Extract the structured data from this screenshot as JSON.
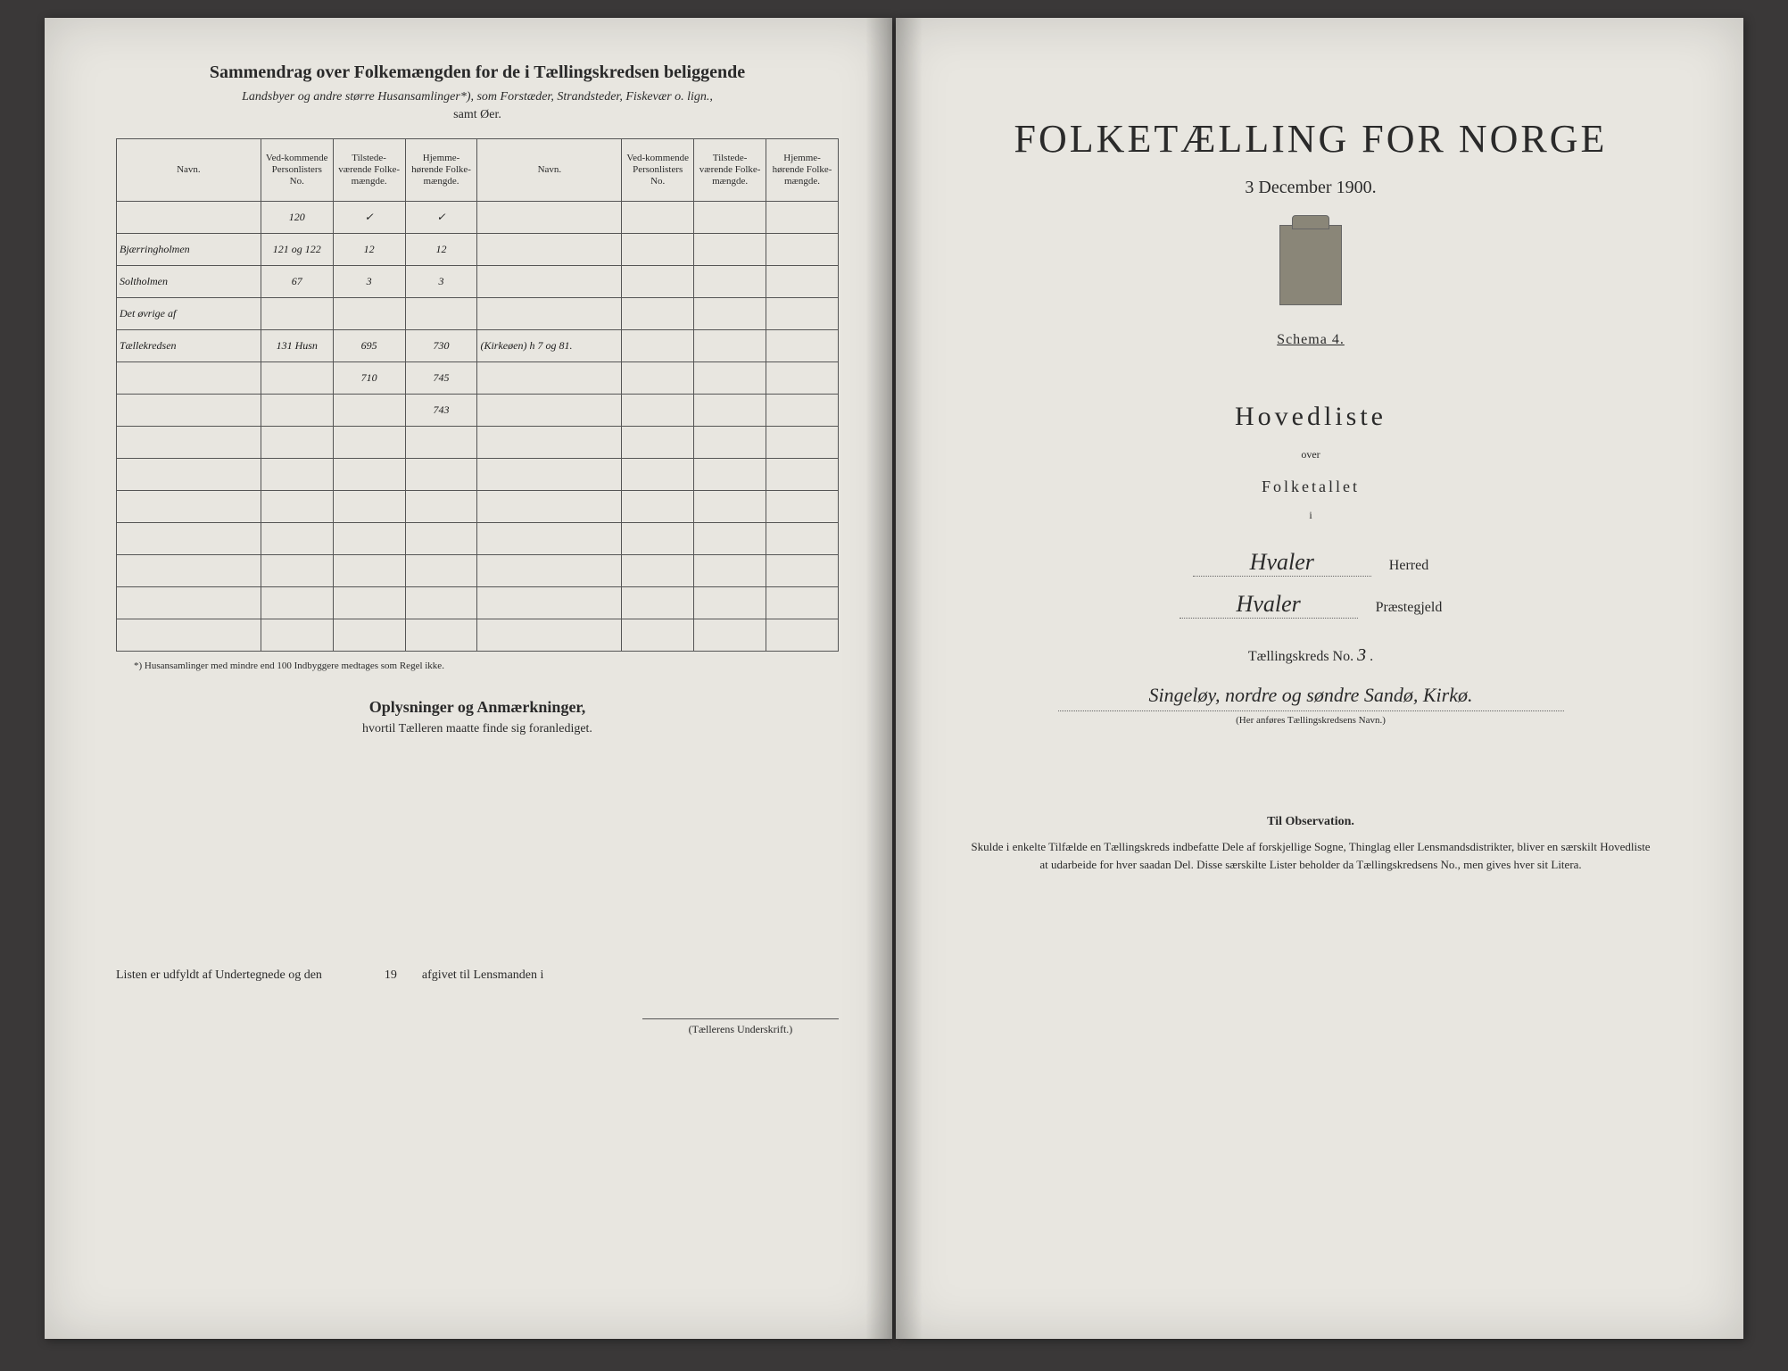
{
  "left": {
    "title": "Sammendrag over Folkemængden for de i Tællingskredsen beliggende",
    "subtitle": "Landsbyer og andre større Husansamlinger*), som Forstæder, Strandsteder, Fiskevær o. lign.,",
    "subtitle2": "samt Øer.",
    "headers": {
      "navn": "Navn.",
      "vedkom": "Ved-kommende Personlisters No.",
      "tilstede": "Tilstede-værende Folke-mængde.",
      "hjemme": "Hjemme-hørende Folke-mængde.",
      "navn2": "Navn.",
      "vedkom2": "Ved-kommende Personlisters No.",
      "tilstede2": "Tilstede-værende Folke-mængde.",
      "hjemme2": "Hjemme-hørende Folke-mængde."
    },
    "rows": [
      {
        "navn": "",
        "no": "120",
        "t": "✓",
        "h": "✓",
        "navn2": "",
        "no2": "",
        "t2": "",
        "h2": ""
      },
      {
        "navn": "Bjærringholmen",
        "no": "121 og 122",
        "t": "12",
        "h": "12",
        "navn2": "",
        "no2": "",
        "t2": "",
        "h2": ""
      },
      {
        "navn": "Soltholmen",
        "no": "67",
        "t": "3",
        "h": "3",
        "navn2": "",
        "no2": "",
        "t2": "",
        "h2": ""
      },
      {
        "navn": "Det øvrige af",
        "no": "",
        "t": "",
        "h": "",
        "navn2": "",
        "no2": "",
        "t2": "",
        "h2": ""
      },
      {
        "navn": "Tællekredsen",
        "no": "131 Husn",
        "t": "695",
        "h": "730",
        "navn2": "(Kirkeøen) h 7 og 81.",
        "no2": "",
        "t2": "",
        "h2": ""
      },
      {
        "navn": "",
        "no": "",
        "t": "710",
        "h": "745",
        "navn2": "",
        "no2": "",
        "t2": "",
        "h2": ""
      },
      {
        "navn": "",
        "no": "",
        "t": "",
        "h": "743",
        "navn2": "",
        "no2": "",
        "t2": "",
        "h2": ""
      }
    ],
    "footnote": "*) Husansamlinger med mindre end 100 Indbyggere medtages som Regel ikke.",
    "oply_title": "Oplysninger og Anmærkninger,",
    "oply_sub": "hvortil Tælleren maatte finde sig foranlediget.",
    "bottom_text_a": "Listen er udfyldt af Undertegnede og den",
    "bottom_text_b": "19",
    "bottom_text_c": "afgivet til Lensmanden i",
    "sig_label": "(Tællerens Underskrift.)"
  },
  "right": {
    "main_title": "FOLKETÆLLING FOR NORGE",
    "date": "3 December 1900.",
    "schema": "Schema 4.",
    "hovedliste": "Hovedliste",
    "over": "over",
    "folketallet": "Folketallet",
    "i": "i",
    "herred_value": "Hvaler",
    "herred_label": "Herred",
    "praeste_value": "Hvaler",
    "praeste_label": "Præstegjeld",
    "kreds_label": "Tællingskreds No.",
    "kreds_no": "3",
    "kreds_name": "Singeløy, nordre og søndre Sandø, Kirkø.",
    "kreds_note": "(Her anføres Tællingskredsens Navn.)",
    "obs_title": "Til Observation.",
    "obs_text": "Skulde i enkelte Tilfælde en Tællingskreds indbefatte Dele af forskjellige Sogne, Thinglag eller Lensmandsdistrikter, bliver en særskilt Hovedliste at udarbeide for hver saadan Del. Disse særskilte Lister beholder da Tællingskredsens No., men gives hver sit Litera."
  }
}
